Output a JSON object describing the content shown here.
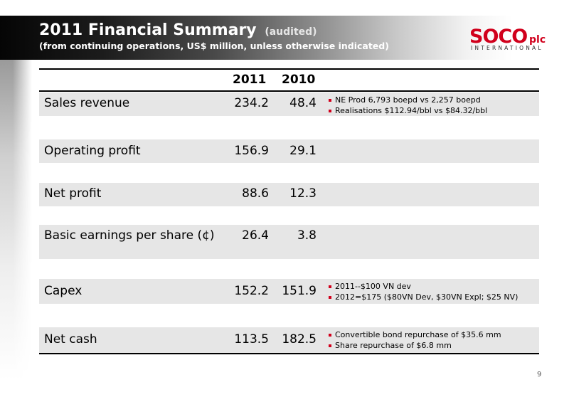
{
  "header": {
    "title": "2011 Financial Summary",
    "title_note": "(audited)",
    "subtitle": "(from continuing operations, US$ million, unless otherwise indicated)"
  },
  "logo": {
    "wordmark": "SOCO",
    "suffix": "plc",
    "tagline": "INTERNATIONAL",
    "color": "#d1001c"
  },
  "table": {
    "columns": [
      "2011",
      "2010"
    ],
    "rows": [
      {
        "label": "Sales revenue",
        "v2011": "234.2",
        "v2010": "48.4",
        "notes": [
          "NE Prod 6,793 boepd vs 2,257 boepd",
          "Realisations $112.94/bbl vs $84.32/bbl"
        ]
      },
      {
        "label": "Operating profit",
        "v2011": "156.9",
        "v2010": "29.1",
        "notes": []
      },
      {
        "label": "Net profit",
        "v2011": "88.6",
        "v2010": "12.3",
        "notes": []
      },
      {
        "label": "Basic earnings per share (¢)",
        "v2011": "26.4",
        "v2010": "3.8",
        "notes": []
      },
      {
        "label": "Capex",
        "v2011": "152.2",
        "v2010": "151.9",
        "notes": [
          "2011--$100 VN dev",
          "2012=$175 ($80VN Dev, $30VN Expl; $25 NV)"
        ]
      },
      {
        "label": "Net cash",
        "v2011": "113.5",
        "v2010": "182.5",
        "notes": [
          "Convertible bond repurchase of $35.6 mm",
          "Share repurchase of $6.8 mm"
        ]
      }
    ]
  },
  "page_number": "9",
  "colors": {
    "bullet": "#d1001c",
    "row_fill": "#e6e6e6"
  }
}
